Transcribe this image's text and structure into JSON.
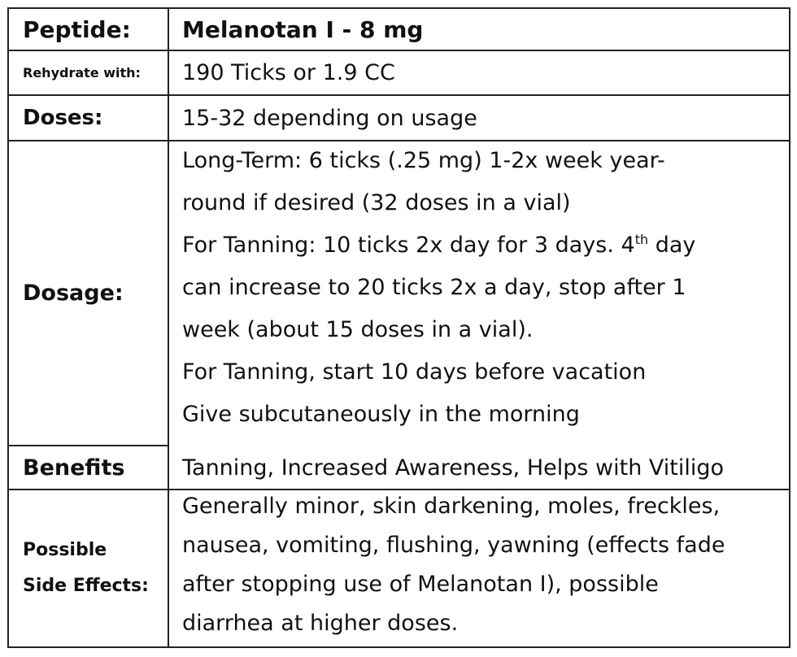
{
  "rows": {
    "peptide": {
      "label": "Peptide:",
      "value": "Melanotan I - 8 mg"
    },
    "rehydrate": {
      "label": "Rehydrate with:",
      "value": "190 Ticks or 1.9 CC"
    },
    "doses": {
      "label": "Doses:",
      "value": "15-32 depending on usage"
    },
    "dosage": {
      "label": "Dosage:",
      "line1": "Long-Term: 6 ticks (.25 mg) 1-2x week year-",
      "line2": "round if desired (32 doses in a vial)",
      "line3_pre": "For Tanning: 10 ticks 2x day for 3 days. 4",
      "line3_sup": "th",
      "line3_post": " day",
      "line4": "can increase to 20 ticks 2x a day, stop after 1",
      "line5": "week (about 15 doses in a vial).",
      "line6": "For Tanning, start 10 days before vacation",
      "line7": "Give subcutaneously in the morning"
    },
    "benefits": {
      "label": "Benefits",
      "value": "Tanning, Increased Awareness, Helps with Vitiligo"
    },
    "side_effects": {
      "label_line1": "Possible",
      "label_line2": "Side Effects:",
      "line1": "Generally minor, skin darkening, moles, freckles,",
      "line2": "nausea, vomiting, flushing, yawning (effects fade",
      "line3": "after stopping use of Melanotan I), possible",
      "line4": "diarrhea at higher doses."
    }
  }
}
